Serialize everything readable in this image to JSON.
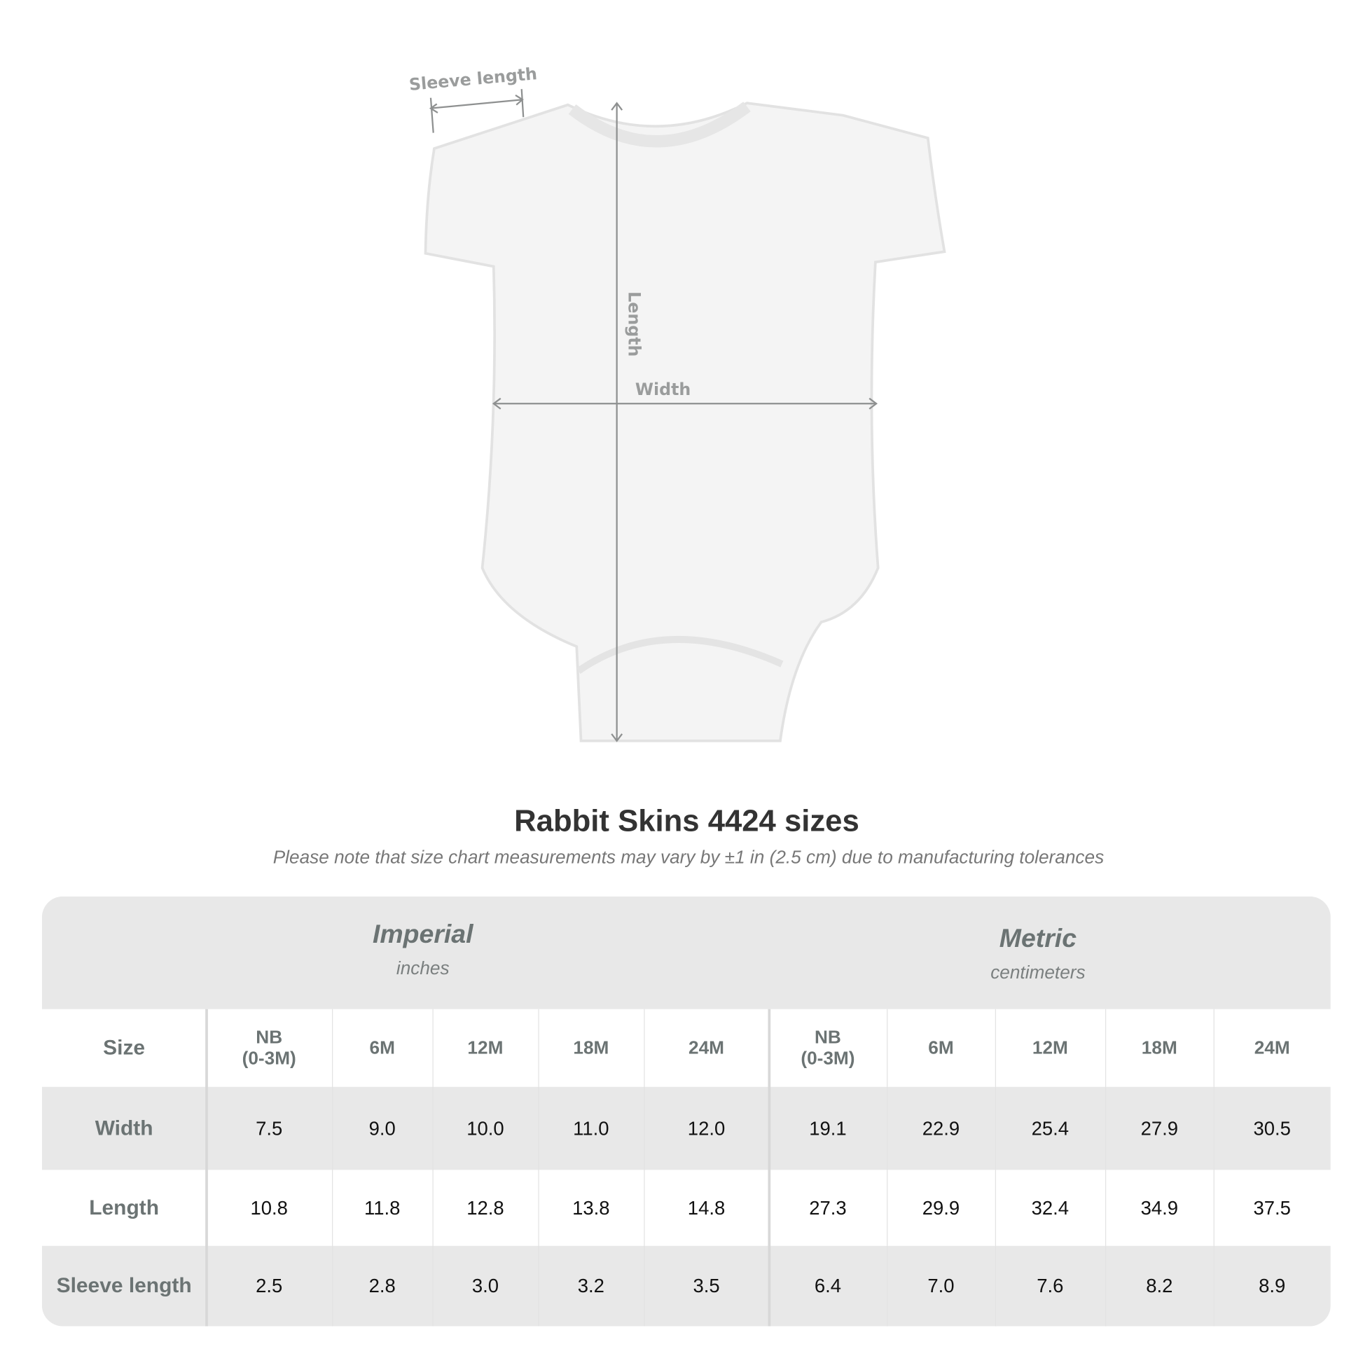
{
  "diagram": {
    "sleeve_label": "Sleeve length",
    "length_label": "Length",
    "width_label": "Width"
  },
  "title": "Rabbit Skins 4424 sizes",
  "subtitle": "Please note that size chart measurements may vary by ±1 in (2.5 cm) due to manufacturing tolerances",
  "table": {
    "imperial": {
      "name": "Imperial",
      "unit": "inches"
    },
    "metric": {
      "name": "Metric",
      "unit": "centimeters"
    },
    "size_label": "Size",
    "sizes": [
      "NB\n(0-3M)",
      "6M",
      "12M",
      "18M",
      "24M",
      "NB\n(0-3M)",
      "6M",
      "12M",
      "18M",
      "24M"
    ],
    "rows": [
      {
        "label": "Width",
        "values": [
          "7.5",
          "9.0",
          "10.0",
          "11.0",
          "12.0",
          "19.1",
          "22.9",
          "25.4",
          "27.9",
          "30.5"
        ]
      },
      {
        "label": "Length",
        "values": [
          "10.8",
          "11.8",
          "12.8",
          "13.8",
          "14.8",
          "27.3",
          "29.9",
          "32.4",
          "34.9",
          "37.5"
        ]
      },
      {
        "label": "Sleeve length",
        "values": [
          "2.5",
          "2.8",
          "3.0",
          "3.2",
          "3.5",
          "6.4",
          "7.0",
          "7.6",
          "8.2",
          "8.9"
        ]
      }
    ]
  }
}
